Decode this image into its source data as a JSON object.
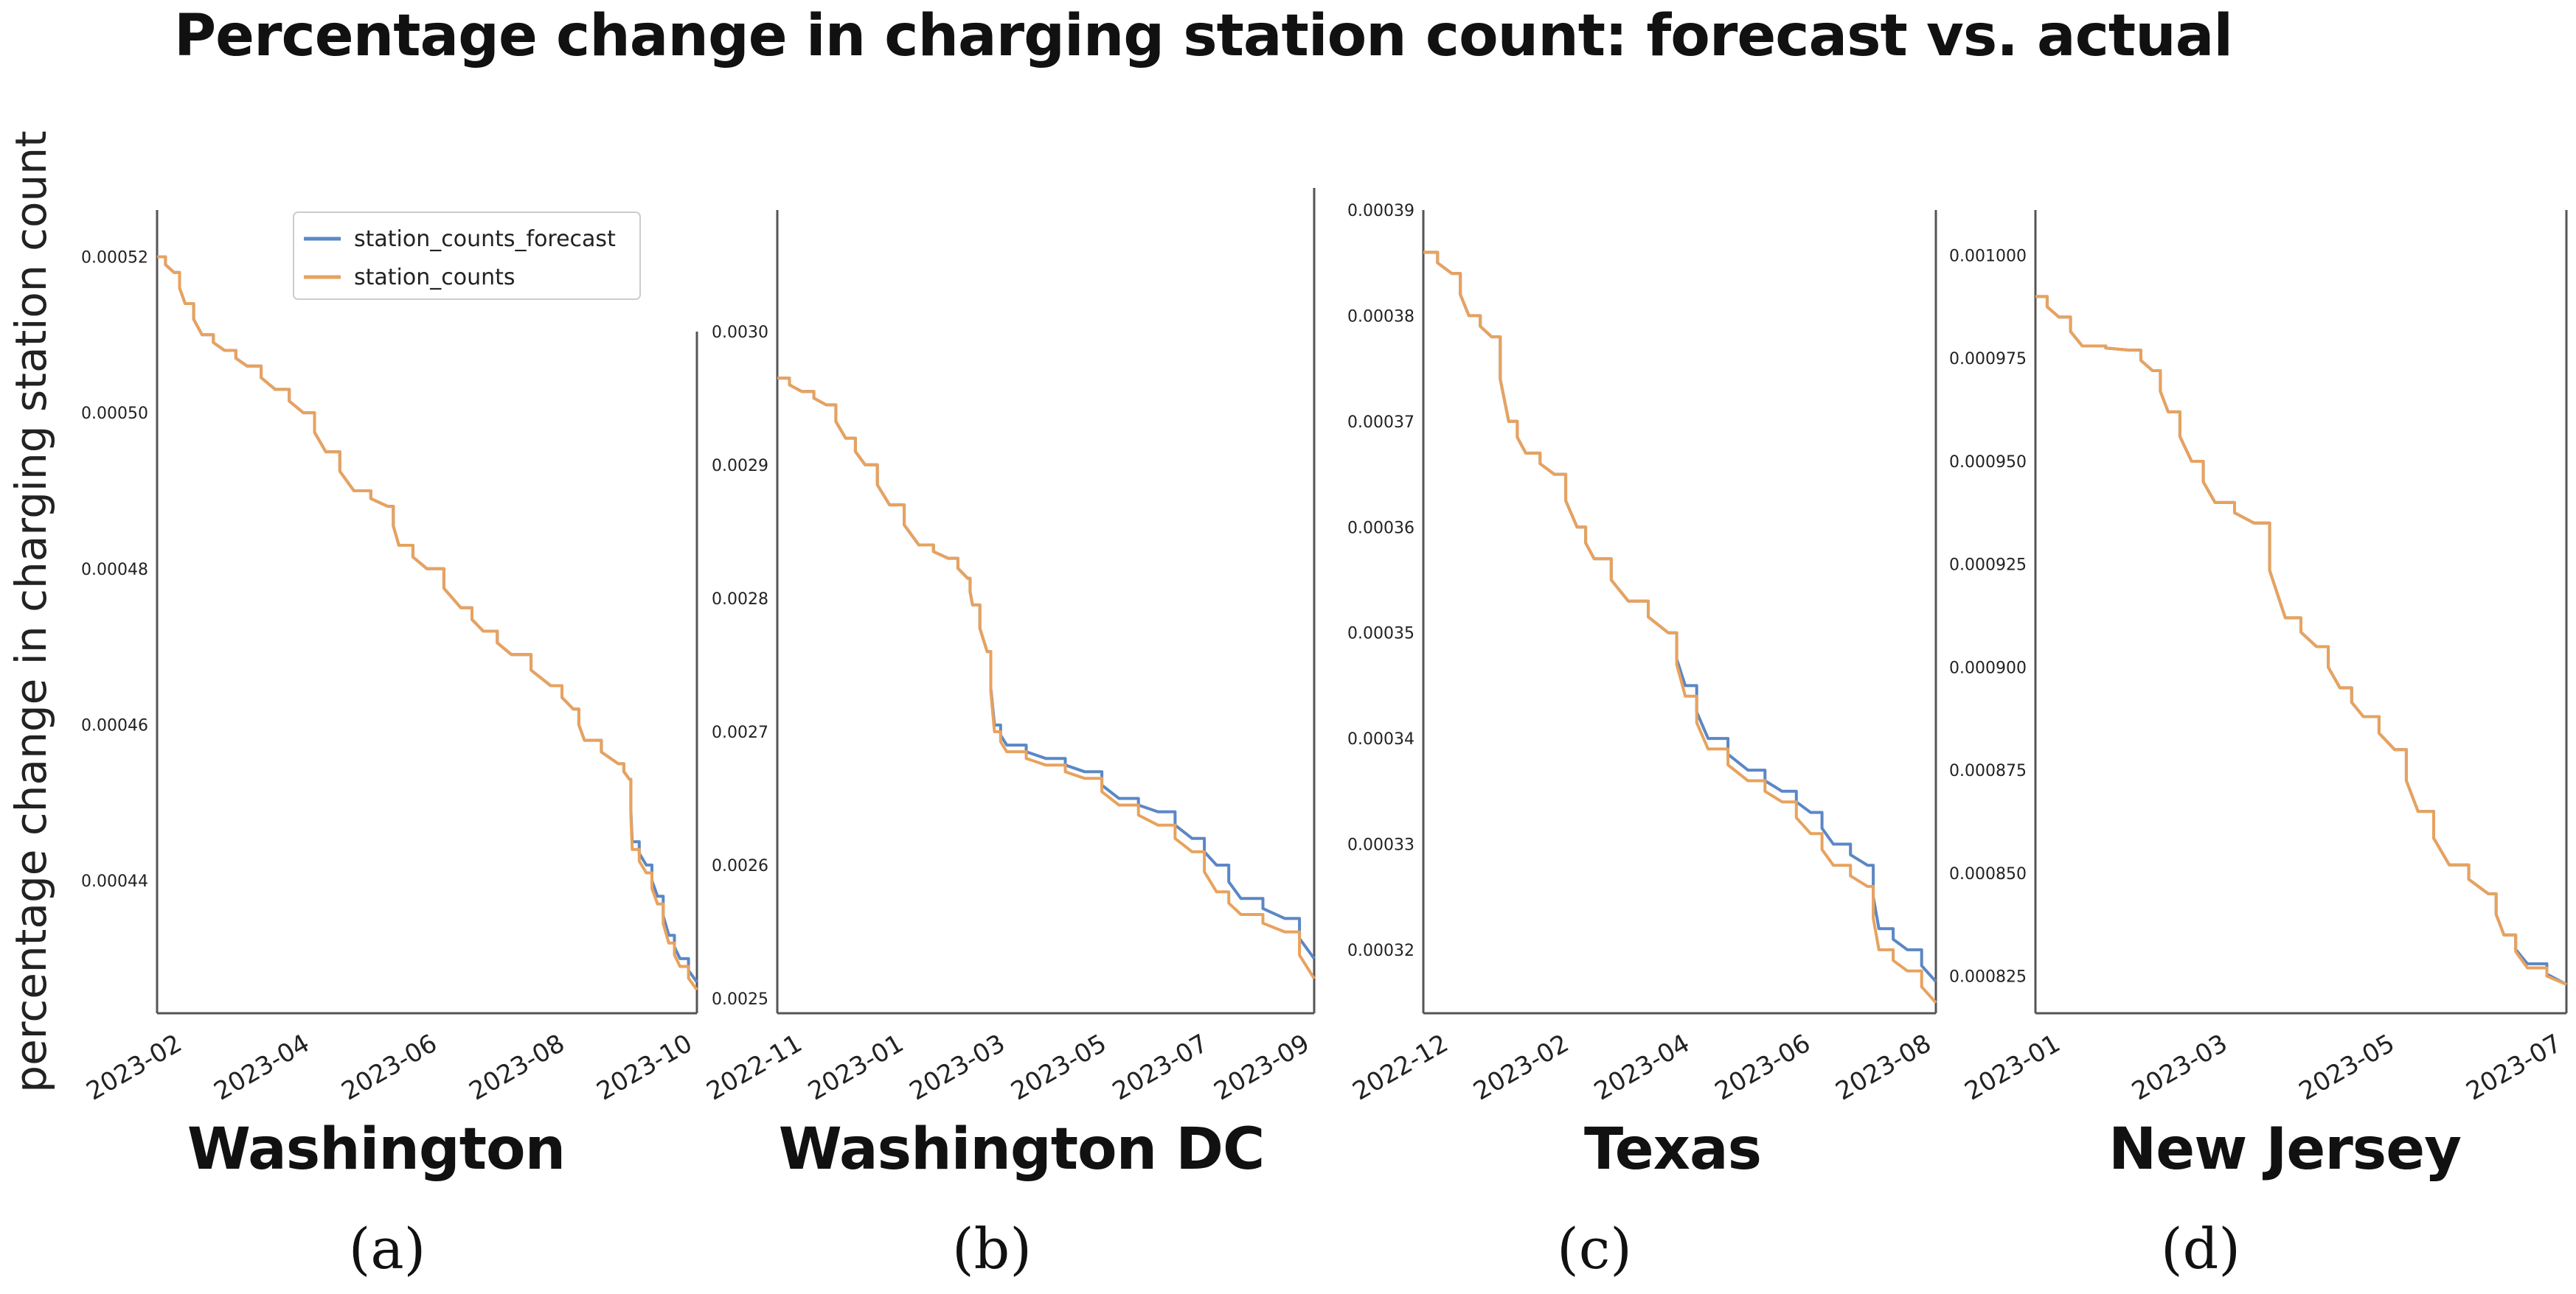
{
  "figure": {
    "title": "Percentage change in charging station count: forecast vs. actual",
    "ylabel": "percentage change in charging station count",
    "colors": {
      "forecast": "#5b87c5",
      "actual": "#e8a25e",
      "axis": "#555555",
      "text": "#222222"
    }
  },
  "chart_data": [
    {
      "type": "line",
      "region": "Washington",
      "panel": "(a)",
      "x_ticks": [
        "2023-02",
        "2023-04",
        "2023-06",
        "2023-08",
        "2023-10"
      ],
      "x_range": [
        0,
        9.6
      ],
      "y_ticks": [
        0.00044,
        0.00046,
        0.00048,
        0.0005,
        0.00052
      ],
      "y_tick_labels": [
        "0.00044",
        "0.00046",
        "0.00048",
        "0.00050",
        "0.00052"
      ],
      "y_range": [
        0.000423,
        0.000526
      ],
      "legend": {
        "position": "top-right",
        "entries": [
          "station_counts_forecast",
          "station_counts"
        ]
      },
      "series": [
        {
          "name": "station_counts_forecast",
          "color": "#5b87c5",
          "points": [
            [
              0,
              0.00052
            ],
            [
              0.3,
              0.000518
            ],
            [
              0.5,
              0.000514
            ],
            [
              0.8,
              0.00051
            ],
            [
              1.2,
              0.000508
            ],
            [
              1.6,
              0.000506
            ],
            [
              2.1,
              0.000503
            ],
            [
              2.6,
              0.0005
            ],
            [
              3.0,
              0.000495
            ],
            [
              3.5,
              0.00049
            ],
            [
              4.1,
              0.000488
            ],
            [
              4.3,
              0.000483
            ],
            [
              4.8,
              0.00048
            ],
            [
              5.4,
              0.000475
            ],
            [
              5.8,
              0.000472
            ],
            [
              6.3,
              0.000469
            ],
            [
              7.0,
              0.000465
            ],
            [
              7.4,
              0.000462
            ],
            [
              7.6,
              0.000458
            ],
            [
              8.2,
              0.000455
            ],
            [
              8.4,
              0.000453
            ],
            [
              8.45,
              0.000445
            ],
            [
              8.7,
              0.000442
            ],
            [
              8.9,
              0.000438
            ],
            [
              9.1,
              0.000433
            ],
            [
              9.3,
              0.00043
            ],
            [
              9.6,
              0.000427
            ]
          ]
        },
        {
          "name": "station_counts",
          "color": "#e8a25e",
          "points": [
            [
              0,
              0.00052
            ],
            [
              0.3,
              0.000518
            ],
            [
              0.5,
              0.000514
            ],
            [
              0.8,
              0.00051
            ],
            [
              1.2,
              0.000508
            ],
            [
              1.6,
              0.000506
            ],
            [
              2.1,
              0.000503
            ],
            [
              2.6,
              0.0005
            ],
            [
              3.0,
              0.000495
            ],
            [
              3.5,
              0.00049
            ],
            [
              4.1,
              0.000488
            ],
            [
              4.3,
              0.000483
            ],
            [
              4.8,
              0.00048
            ],
            [
              5.4,
              0.000475
            ],
            [
              5.8,
              0.000472
            ],
            [
              6.3,
              0.000469
            ],
            [
              7.0,
              0.000465
            ],
            [
              7.4,
              0.000462
            ],
            [
              7.6,
              0.000458
            ],
            [
              8.2,
              0.000455
            ],
            [
              8.4,
              0.000453
            ],
            [
              8.45,
              0.000444
            ],
            [
              8.7,
              0.000441
            ],
            [
              8.9,
              0.000437
            ],
            [
              9.1,
              0.000432
            ],
            [
              9.3,
              0.000429
            ],
            [
              9.6,
              0.000426
            ]
          ]
        }
      ]
    },
    {
      "type": "line",
      "region": "Washington DC",
      "panel": "(b)",
      "x_ticks": [
        "2022-11",
        "2023-01",
        "2023-03",
        "2023-05",
        "2023-07",
        "2023-09"
      ],
      "x_range": [
        0,
        11.0
      ],
      "y_ticks": [
        0.0025,
        0.0026,
        0.0027,
        0.0028,
        0.0029,
        0.003
      ],
      "y_tick_labels": [
        "0.0025",
        "0.0026",
        "0.0027",
        "0.0028",
        "0.0029",
        "0.0030"
      ],
      "y_range": [
        0.002489,
        0.003091
      ],
      "series": [
        {
          "name": "station_counts_forecast",
          "color": "#5b87c5",
          "points": [
            [
              0,
              0.002965
            ],
            [
              0.5,
              0.002955
            ],
            [
              1.0,
              0.002945
            ],
            [
              1.4,
              0.00292
            ],
            [
              1.8,
              0.0029
            ],
            [
              2.3,
              0.00287
            ],
            [
              2.9,
              0.00284
            ],
            [
              3.5,
              0.00283
            ],
            [
              3.9,
              0.002815
            ],
            [
              4.0,
              0.002795
            ],
            [
              4.3,
              0.00276
            ],
            [
              4.45,
              0.002705
            ],
            [
              4.7,
              0.00269
            ],
            [
              5.5,
              0.00268
            ],
            [
              6.3,
              0.00267
            ],
            [
              7.0,
              0.00265
            ],
            [
              7.8,
              0.00264
            ],
            [
              8.5,
              0.00262
            ],
            [
              9.0,
              0.0026
            ],
            [
              9.5,
              0.002575
            ],
            [
              10.4,
              0.00256
            ],
            [
              11.0,
              0.00253
            ]
          ]
        },
        {
          "name": "station_counts",
          "color": "#e8a25e",
          "points": [
            [
              0,
              0.002965
            ],
            [
              0.5,
              0.002955
            ],
            [
              1.0,
              0.002945
            ],
            [
              1.4,
              0.00292
            ],
            [
              1.8,
              0.0029
            ],
            [
              2.3,
              0.00287
            ],
            [
              2.9,
              0.00284
            ],
            [
              3.5,
              0.00283
            ],
            [
              3.9,
              0.002815
            ],
            [
              4.0,
              0.002795
            ],
            [
              4.3,
              0.00276
            ],
            [
              4.45,
              0.0027
            ],
            [
              4.7,
              0.002685
            ],
            [
              5.5,
              0.002675
            ],
            [
              6.3,
              0.002665
            ],
            [
              7.0,
              0.002645
            ],
            [
              7.8,
              0.00263
            ],
            [
              8.5,
              0.00261
            ],
            [
              9.0,
              0.00258
            ],
            [
              9.5,
              0.002563
            ],
            [
              10.4,
              0.00255
            ],
            [
              11.0,
              0.002515
            ]
          ]
        }
      ]
    },
    {
      "type": "line",
      "region": "Texas",
      "panel": "(c)",
      "x_ticks": [
        "2022-12",
        "2023-02",
        "2023-04",
        "2023-06",
        "2023-08"
      ],
      "x_range": [
        0,
        9.0
      ],
      "y_ticks": [
        0.00032,
        0.00033,
        0.00034,
        0.00035,
        0.00036,
        0.00037,
        0.00038,
        0.00039
      ],
      "y_tick_labels": [
        "0.00032",
        "0.00033",
        "0.00034",
        "0.00035",
        "0.00036",
        "0.00037",
        "0.00038",
        "0.00039"
      ],
      "y_range": [
        0.000314,
        0.00039
      ],
      "series": [
        {
          "name": "station_counts_forecast",
          "color": "#5b87c5",
          "points": [
            [
              0,
              0.000386
            ],
            [
              0.5,
              0.000384
            ],
            [
              0.8,
              0.00038
            ],
            [
              1.2,
              0.000378
            ],
            [
              1.5,
              0.00037
            ],
            [
              1.8,
              0.000367
            ],
            [
              2.3,
              0.000365
            ],
            [
              2.7,
              0.00036
            ],
            [
              3.0,
              0.000357
            ],
            [
              3.6,
              0.000353
            ],
            [
              4.3,
              0.00035
            ],
            [
              4.6,
              0.000345
            ],
            [
              5.0,
              0.00034
            ],
            [
              5.7,
              0.000337
            ],
            [
              6.3,
              0.000335
            ],
            [
              6.8,
              0.000333
            ],
            [
              7.2,
              0.00033
            ],
            [
              7.8,
              0.000328
            ],
            [
              8.0,
              0.000322
            ],
            [
              8.5,
              0.00032
            ],
            [
              9.0,
              0.000317
            ]
          ]
        },
        {
          "name": "station_counts",
          "color": "#e8a25e",
          "points": [
            [
              0,
              0.000386
            ],
            [
              0.5,
              0.000384
            ],
            [
              0.8,
              0.00038
            ],
            [
              1.2,
              0.000378
            ],
            [
              1.5,
              0.00037
            ],
            [
              1.8,
              0.000367
            ],
            [
              2.3,
              0.000365
            ],
            [
              2.7,
              0.00036
            ],
            [
              3.0,
              0.000357
            ],
            [
              3.6,
              0.000353
            ],
            [
              4.3,
              0.00035
            ],
            [
              4.6,
              0.000344
            ],
            [
              5.0,
              0.000339
            ],
            [
              5.7,
              0.000336
            ],
            [
              6.3,
              0.000334
            ],
            [
              6.8,
              0.000331
            ],
            [
              7.2,
              0.000328
            ],
            [
              7.8,
              0.000326
            ],
            [
              8.0,
              0.00032
            ],
            [
              8.5,
              0.000318
            ],
            [
              9.0,
              0.000315
            ]
          ]
        }
      ]
    },
    {
      "type": "line",
      "region": "New Jersey",
      "panel": "(d)",
      "x_ticks": [
        "2023-01",
        "2023-03",
        "2023-05",
        "2023-07"
      ],
      "x_range": [
        0,
        6.8
      ],
      "y_ticks": [
        0.000825,
        0.00085,
        0.000875,
        0.0009,
        0.000925,
        0.00095,
        0.000975,
        0.001
      ],
      "y_tick_labels": [
        "0.000825",
        "0.000850",
        "0.000875",
        "0.000900",
        "0.000925",
        "0.000950",
        "0.000975",
        "0.001000"
      ],
      "y_range": [
        0.000816,
        0.001011
      ],
      "series": [
        {
          "name": "station_counts_forecast",
          "color": "#5b87c5",
          "points": [
            [
              0,
              0.00099
            ],
            [
              0.3,
              0.000985
            ],
            [
              0.6,
              0.000978
            ],
            [
              1.2,
              0.000977
            ],
            [
              1.5,
              0.000972
            ],
            [
              1.7,
              0.000962
            ],
            [
              2.0,
              0.00095
            ],
            [
              2.3,
              0.00094
            ],
            [
              2.8,
              0.000935
            ],
            [
              3.2,
              0.000912
            ],
            [
              3.6,
              0.000905
            ],
            [
              3.9,
              0.000895
            ],
            [
              4.2,
              0.000888
            ],
            [
              4.6,
              0.00088
            ],
            [
              4.9,
              0.000865
            ],
            [
              5.3,
              0.000852
            ],
            [
              5.8,
              0.000845
            ],
            [
              6.0,
              0.000835
            ],
            [
              6.3,
              0.000828
            ],
            [
              6.8,
              0.000823
            ]
          ]
        },
        {
          "name": "station_counts",
          "color": "#e8a25e",
          "points": [
            [
              0,
              0.00099
            ],
            [
              0.3,
              0.000985
            ],
            [
              0.6,
              0.000978
            ],
            [
              1.2,
              0.000977
            ],
            [
              1.5,
              0.000972
            ],
            [
              1.7,
              0.000962
            ],
            [
              2.0,
              0.00095
            ],
            [
              2.3,
              0.00094
            ],
            [
              2.8,
              0.000935
            ],
            [
              3.2,
              0.000912
            ],
            [
              3.6,
              0.000905
            ],
            [
              3.9,
              0.000895
            ],
            [
              4.2,
              0.000888
            ],
            [
              4.6,
              0.00088
            ],
            [
              4.9,
              0.000865
            ],
            [
              5.3,
              0.000852
            ],
            [
              5.8,
              0.000845
            ],
            [
              6.0,
              0.000835
            ],
            [
              6.3,
              0.000827
            ],
            [
              6.8,
              0.000823
            ]
          ]
        }
      ]
    }
  ]
}
